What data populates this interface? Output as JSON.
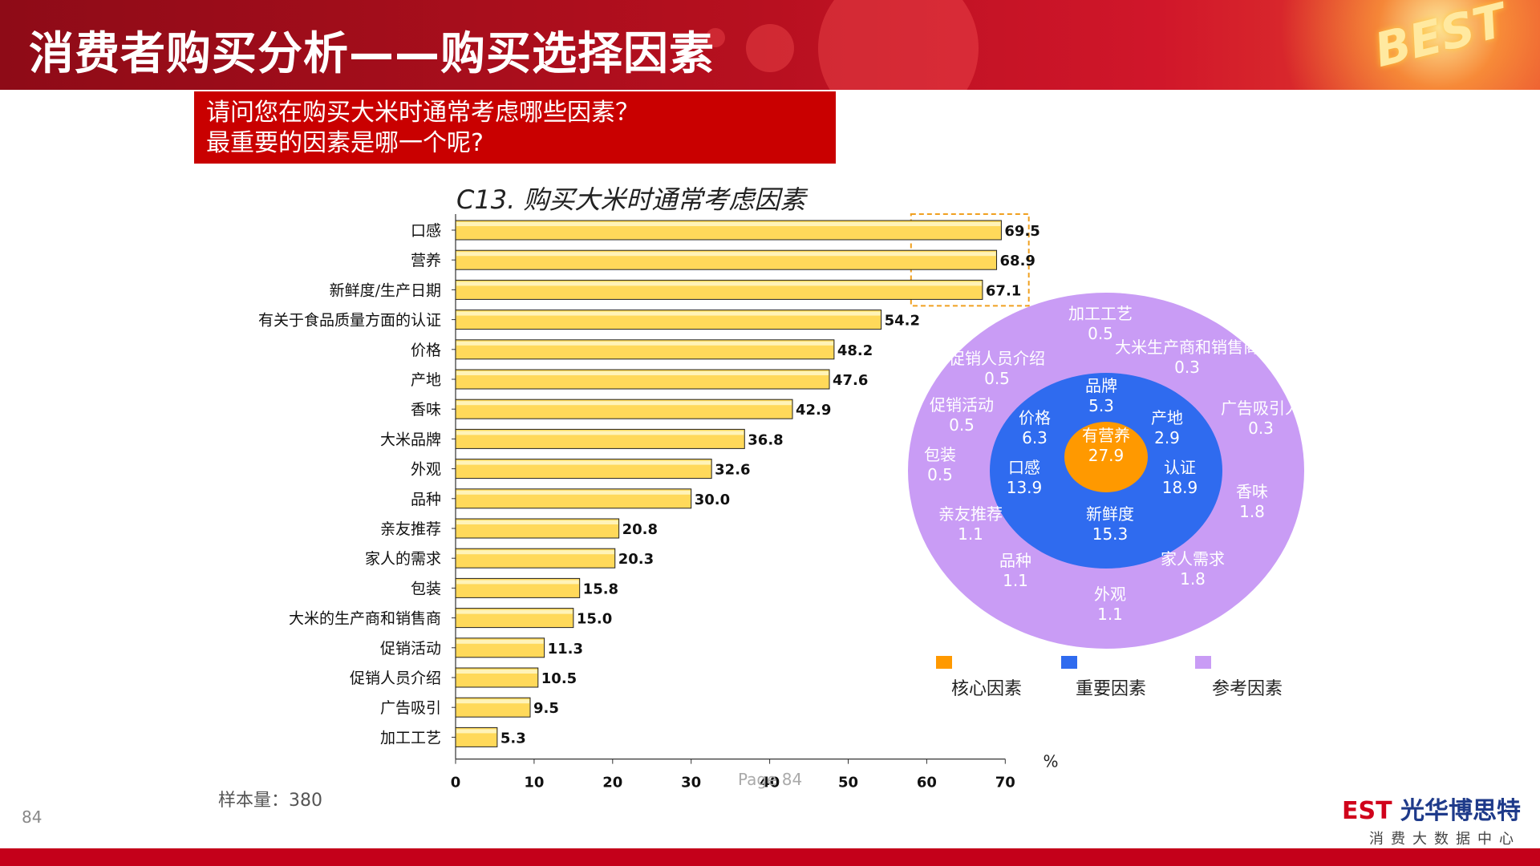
{
  "header": {
    "title": "消费者购买分析——购买选择因素",
    "logo": "BEST"
  },
  "question": {
    "line1": "请问您在购买大米时通常考虑哪些因素？",
    "line2": "最重要的因素是哪一个呢?"
  },
  "chart_data": [
    {
      "type": "bar",
      "orientation": "horizontal",
      "title": "C13. 购买大米时通常考虑因素",
      "categories": [
        "口感",
        "营养",
        "新鲜度/生产日期",
        "有关于食品质量方面的认证",
        "价格",
        "产地",
        "香味",
        "大米品牌",
        "外观",
        "品种",
        "亲友推荐",
        "家人的需求",
        "包装",
        "大米的生产商和销售商",
        "促销活动",
        "促销人员介绍",
        "广告吸引",
        "加工工艺"
      ],
      "values": [
        69.5,
        68.9,
        67.1,
        54.2,
        48.2,
        47.6,
        42.9,
        36.8,
        32.6,
        30.0,
        20.8,
        20.3,
        15.8,
        15.0,
        11.3,
        10.5,
        9.5,
        5.3
      ],
      "value_labels": [
        "69.5",
        "68.9",
        "67.1",
        "54.2",
        "48.2",
        "47.6",
        "42.9",
        "36.8",
        "32.6",
        "30.0",
        "20.8",
        "20.3",
        "15.8",
        "15.0",
        "11.3",
        "10.5",
        "9.5",
        "5.3"
      ],
      "xlim": [
        0,
        70
      ],
      "xticks": [
        "0",
        "10",
        "20",
        "30",
        "40",
        "50",
        "60",
        "70"
      ],
      "unit": "%",
      "highlighted": [
        "口感",
        "营养",
        "新鲜度/生产日期"
      ],
      "bar_color": "#ffd95a"
    },
    {
      "type": "pie",
      "layout": "concentric",
      "rings": [
        {
          "name": "核心因素",
          "color": "#ff9900",
          "items": [
            {
              "label": "有营养",
              "value": "27.9"
            }
          ]
        },
        {
          "name": "重要因素",
          "color": "#2f6bef",
          "items": [
            {
              "label": "品牌",
              "value": "5.3"
            },
            {
              "label": "产地",
              "value": "2.9"
            },
            {
              "label": "认证",
              "value": "18.9"
            },
            {
              "label": "新鲜度",
              "value": "15.3"
            },
            {
              "label": "口感",
              "value": "13.9"
            },
            {
              "label": "价格",
              "value": "6.3"
            }
          ]
        },
        {
          "name": "参考因素",
          "color": "#c99cf5",
          "items": [
            {
              "label": "加工工艺",
              "value": "0.5"
            },
            {
              "label": "大米生产商和销售商",
              "value": "0.3"
            },
            {
              "label": "广告吸引人",
              "value": "0.3"
            },
            {
              "label": "香味",
              "value": "1.8"
            },
            {
              "label": "家人需求",
              "value": "1.8"
            },
            {
              "label": "外观",
              "value": "1.1"
            },
            {
              "label": "品种",
              "value": "1.1"
            },
            {
              "label": "亲友推荐",
              "value": "1.1"
            },
            {
              "label": "包装",
              "value": "0.5"
            },
            {
              "label": "促销活动",
              "value": "0.5"
            },
            {
              "label": "促销人员介绍",
              "value": "0.5"
            }
          ]
        }
      ],
      "legend": [
        "核心因素",
        "重要因素",
        "参考因素"
      ],
      "legend_position": "bottom"
    }
  ],
  "footer": {
    "sample": "样本量：380",
    "page_number": "84",
    "page_word": "Page 84",
    "brand_en": "EST",
    "brand_cn": "光华博思特",
    "brand_sub": "消费大数据中心"
  }
}
